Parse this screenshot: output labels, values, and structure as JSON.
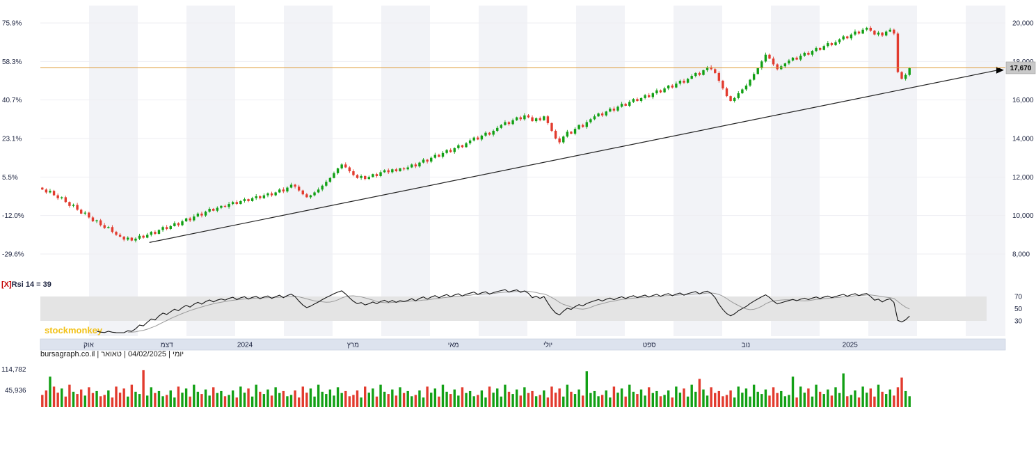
{
  "page": {
    "watermark": "stockmonkey"
  },
  "footer": {
    "status": "יומי | 04/02/2025 | טאואר | bursagraph.co.il"
  },
  "chart_data": {
    "type": "candlestick",
    "interval": "יומי",
    "date": "04/02/2025",
    "instrument": "טאואר",
    "source": "bursagraph.co.il",
    "price_panel": {
      "ylim": [
        8000,
        20000
      ],
      "right_axis_labels": [
        "20,000",
        "18,000",
        "16,000",
        "14,000",
        "12,000",
        "10,000",
        "8,000"
      ],
      "right_axis_values": [
        20000,
        18000,
        16000,
        14000,
        12000,
        10000,
        8000
      ],
      "left_axis_labels": [
        "75.9%",
        "58.3%",
        "40.7%",
        "23.1%",
        "5.5%",
        "-12.0%",
        "-29.6%"
      ],
      "last_price": 17670,
      "hline": {
        "price": 17670,
        "label": "17,670"
      },
      "trendline": {
        "x1_frac": 0.113,
        "price1": 8600,
        "x2_frac": 0.992,
        "price2": 17550
      },
      "closes": [
        11350,
        11200,
        11280,
        11050,
        10900,
        10950,
        10700,
        10500,
        10550,
        10300,
        10100,
        10150,
        9900,
        9700,
        9750,
        9500,
        9350,
        9400,
        9150,
        9000,
        8900,
        8750,
        8850,
        8700,
        8800,
        8950,
        8850,
        9000,
        9150,
        9050,
        9250,
        9400,
        9300,
        9450,
        9600,
        9500,
        9700,
        9850,
        9750,
        9950,
        10100,
        10000,
        10200,
        10350,
        10250,
        10400,
        10500,
        10450,
        10600,
        10700,
        10600,
        10750,
        10850,
        10750,
        10900,
        11000,
        10900,
        11050,
        11150,
        11050,
        11200,
        11350,
        11250,
        11450,
        11600,
        11500,
        11300,
        11100,
        10950,
        11050,
        11200,
        11350,
        11550,
        11750,
        11950,
        12200,
        12450,
        12650,
        12500,
        12300,
        12100,
        11950,
        12050,
        11900,
        12000,
        12150,
        12050,
        12250,
        12350,
        12250,
        12400,
        12300,
        12450,
        12400,
        12500,
        12650,
        12550,
        12750,
        12900,
        12800,
        13000,
        13150,
        13050,
        13250,
        13400,
        13300,
        13500,
        13650,
        13550,
        13750,
        13900,
        14050,
        13950,
        14150,
        14300,
        14200,
        14400,
        14550,
        14700,
        14850,
        14750,
        14950,
        15100,
        15000,
        15200,
        15100,
        14900,
        15050,
        14950,
        15150,
        14800,
        14400,
        14000,
        13800,
        14100,
        14350,
        14250,
        14500,
        14700,
        14600,
        14850,
        15000,
        15150,
        15300,
        15200,
        15400,
        15550,
        15450,
        15650,
        15800,
        15700,
        15900,
        16050,
        15950,
        16100,
        16250,
        16150,
        16350,
        16500,
        16400,
        16600,
        16750,
        16650,
        16850,
        17000,
        16900,
        17100,
        17250,
        17400,
        17300,
        17550,
        17700,
        17600,
        17400,
        17000,
        16600,
        16200,
        15950,
        16100,
        16350,
        16550,
        16750,
        17050,
        17350,
        17650,
        18000,
        18350,
        18150,
        17850,
        17600,
        17750,
        17900,
        18050,
        18200,
        18100,
        18300,
        18450,
        18350,
        18550,
        18700,
        18600,
        18800,
        18950,
        18850,
        19000,
        19150,
        19300,
        19200,
        19400,
        19550,
        19450,
        19650,
        19750,
        19600,
        19400,
        19500,
        19350,
        19550,
        19650,
        19450,
        17450,
        17100,
        17300,
        17670
      ]
    },
    "x_axis": {
      "ticks": [
        {
          "label": "אוק",
          "f": 0.05
        },
        {
          "label": "דצמ",
          "f": 0.131
        },
        {
          "label": "2024",
          "f": 0.212
        },
        {
          "label": "מרץ",
          "f": 0.324
        },
        {
          "label": "מאי",
          "f": 0.428
        },
        {
          "label": "יולי",
          "f": 0.526
        },
        {
          "label": "ספט",
          "f": 0.631
        },
        {
          "label": "נוב",
          "f": 0.731
        },
        {
          "label": "2025",
          "f": 0.839
        }
      ]
    },
    "rsi": {
      "period": 14,
      "value": 39,
      "remove_label": "[X]",
      "label": "Rsi 14 = 39",
      "band": [
        30,
        70
      ],
      "right_labels": [
        "70",
        "50",
        "30"
      ],
      "right_values": [
        70,
        50,
        30
      ]
    },
    "volume": {
      "axis_labels": [
        "114,782",
        "45,936"
      ],
      "axis_values": [
        114782,
        45936
      ],
      "values_k": [
        38,
        52,
        95,
        64,
        45,
        58,
        33,
        70,
        48,
        41,
        55,
        36,
        62,
        44,
        50,
        34,
        38,
        52,
        30,
        64,
        45,
        58,
        33,
        70,
        48,
        41,
        115,
        36,
        62,
        44,
        50,
        34,
        38,
        52,
        30,
        64,
        45,
        58,
        33,
        70,
        48,
        41,
        55,
        36,
        62,
        44,
        50,
        34,
        38,
        52,
        30,
        64,
        45,
        58,
        33,
        70,
        48,
        41,
        55,
        36,
        62,
        44,
        50,
        34,
        38,
        52,
        30,
        64,
        45,
        58,
        33,
        70,
        48,
        41,
        55,
        36,
        62,
        44,
        50,
        34,
        38,
        52,
        30,
        64,
        45,
        58,
        33,
        70,
        48,
        41,
        55,
        36,
        62,
        44,
        50,
        34,
        38,
        52,
        30,
        64,
        45,
        58,
        33,
        70,
        48,
        41,
        55,
        36,
        62,
        44,
        50,
        34,
        38,
        52,
        30,
        64,
        45,
        58,
        33,
        70,
        48,
        41,
        55,
        36,
        62,
        44,
        50,
        34,
        38,
        52,
        30,
        64,
        45,
        58,
        33,
        70,
        48,
        41,
        55,
        36,
        112,
        44,
        50,
        34,
        38,
        52,
        30,
        64,
        45,
        58,
        33,
        70,
        48,
        41,
        55,
        36,
        62,
        44,
        50,
        34,
        38,
        52,
        30,
        64,
        45,
        58,
        33,
        70,
        48,
        88,
        55,
        36,
        62,
        44,
        50,
        34,
        38,
        52,
        30,
        64,
        45,
        58,
        33,
        70,
        48,
        41,
        55,
        36,
        62,
        44,
        50,
        34,
        38,
        95,
        30,
        64,
        45,
        58,
        33,
        70,
        48,
        41,
        55,
        36,
        62,
        44,
        105,
        34,
        38,
        52,
        30,
        64,
        45,
        58,
        33,
        70,
        48,
        41,
        55,
        36,
        62,
        92,
        50,
        34
      ]
    },
    "colors": {
      "up": "#12a015",
      "down": "#e23b2e",
      "rsi": "#141414",
      "rsi_signal": "#9a9a9a",
      "trend": "#222222",
      "hline": "#dd9933",
      "band": "#e4e4e4",
      "stripe": "#f2f3f7",
      "grid": "#ededf2",
      "axis_text": "#1d2440",
      "tag_bg": "#c9c9c9",
      "date_bar": "#dde3ee",
      "watermark": "#f2c21a"
    }
  }
}
